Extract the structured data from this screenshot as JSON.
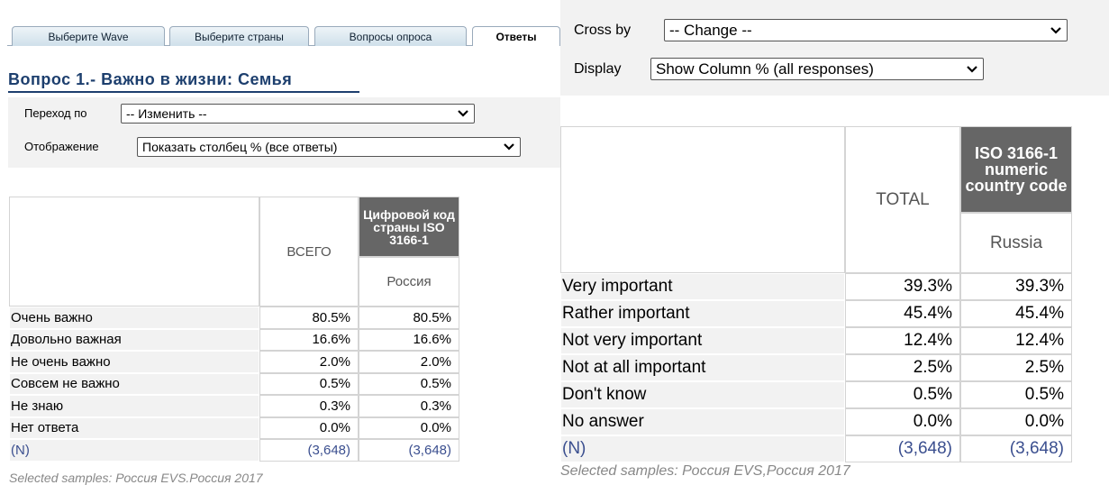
{
  "left": {
    "tabs": [
      "Выберите Wave",
      "Выберите страны",
      "Вопросы опроса",
      "Ответы"
    ],
    "heading": "Вопрос 1.- Важно в жизни: Семья",
    "controls": [
      {
        "label": "Переход по",
        "value": "-- Изменить --"
      },
      {
        "label": "Отображение",
        "value": "Показать столбец % (все ответы)"
      }
    ],
    "table": {
      "total": "ВСЕГО",
      "group": "Цифровой код страны ISO 3166-1",
      "sub": "Россия",
      "rows": [
        [
          "Очень важно",
          "80.5%",
          "80.5%"
        ],
        [
          "Довольно важная",
          "16.6%",
          "16.6%"
        ],
        [
          "Не очень важно",
          "2.0%",
          "2.0%"
        ],
        [
          "Совсем не важно",
          "0.5%",
          "0.5%"
        ],
        [
          "Не знаю",
          "0.3%",
          "0.3%"
        ],
        [
          "Нет ответа",
          "0.0%",
          "0.0%"
        ],
        [
          "(N)",
          "(3,648)",
          "(3,648)"
        ]
      ]
    },
    "note": "Selected samples: Россия EVS.Россия 2017"
  },
  "right": {
    "controls": [
      {
        "label": "Cross by",
        "value": "-- Change --"
      },
      {
        "label": "Display",
        "value": "Show Column % (all responses)"
      }
    ],
    "table": {
      "total": "TOTAL",
      "group": "ISO 3166-1 numeric country code",
      "sub": "Russia",
      "rows": [
        [
          "Very important",
          "39.3%",
          "39.3%"
        ],
        [
          "Rather important",
          "45.4%",
          "45.4%"
        ],
        [
          "Not very important",
          "12.4%",
          "12.4%"
        ],
        [
          "Not at all important",
          "2.5%",
          "2.5%"
        ],
        [
          "Don't know",
          "0.5%",
          "0.5%"
        ],
        [
          "No answer",
          "0.0%",
          "0.0%"
        ],
        [
          "(N)",
          "(3,648)",
          "(3,648)"
        ]
      ]
    },
    "note": "Selected samples: Россия EVS,Россия 2017"
  }
}
